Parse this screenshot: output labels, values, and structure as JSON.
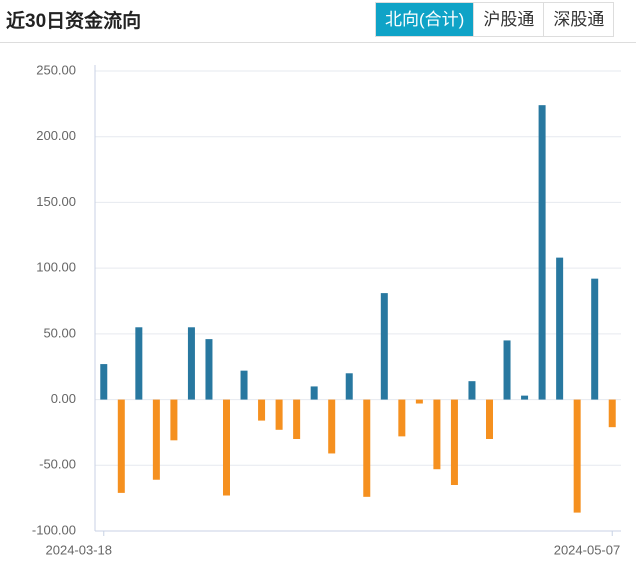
{
  "tabs": [
    "北向(合计)",
    "沪股通",
    "深股通"
  ],
  "active_tab": 0,
  "chart_data": {
    "type": "bar",
    "title": "近30日资金流向",
    "categories": [
      "2024-03-18",
      null,
      null,
      null,
      null,
      null,
      null,
      null,
      null,
      null,
      null,
      null,
      null,
      null,
      null,
      null,
      null,
      null,
      null,
      null,
      null,
      null,
      null,
      null,
      null,
      null,
      null,
      null,
      null,
      "2024-05-07"
    ],
    "values": [
      27,
      -71,
      55,
      -61,
      -31,
      55,
      46,
      -73,
      22,
      -16,
      -23,
      -30,
      10,
      -41,
      20,
      -74,
      81,
      -28,
      -3,
      -53,
      -65,
      14,
      -30,
      45,
      3,
      224,
      108,
      -86,
      92,
      -21
    ],
    "positive_color": "#2878a0",
    "negative_color": "#f5901f",
    "ylim": [
      -100,
      250
    ],
    "yticks": [
      {
        "value": -100,
        "label": "-100.00"
      },
      {
        "value": -50,
        "label": "-50.00"
      },
      {
        "value": 0,
        "label": "0.00"
      },
      {
        "value": 50,
        "label": "50.00"
      },
      {
        "value": 100,
        "label": "100.00"
      },
      {
        "value": 150,
        "label": "150.00"
      },
      {
        "value": 200,
        "label": "200.00"
      },
      {
        "value": 250,
        "label": "250.00"
      }
    ],
    "grid": true
  }
}
